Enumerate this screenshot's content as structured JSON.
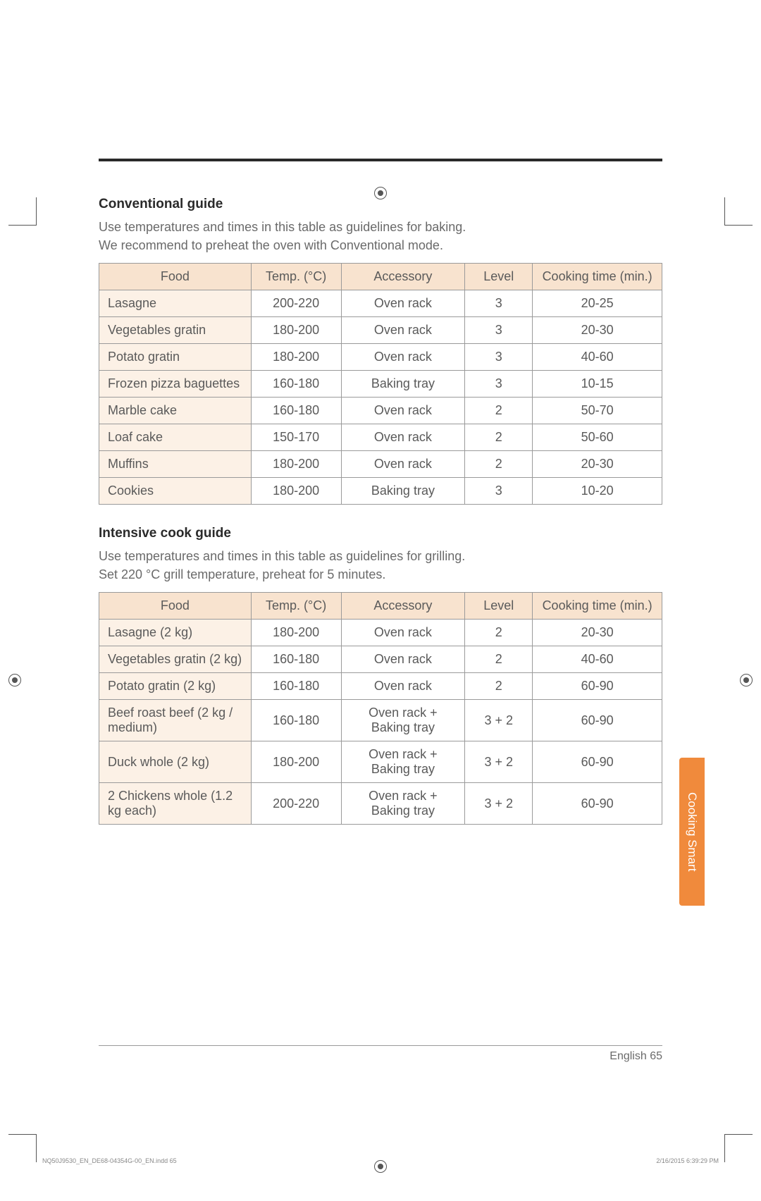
{
  "colors": {
    "rule": "#2a2a2a",
    "heading": "#2a2a2a",
    "body_text": "#6a6a6a",
    "table_border": "#9a9a9a",
    "th_bg": "#f8e3cf",
    "food_bg": "#fcf1e6",
    "tab_bg": "#f08a3c",
    "tab_text": "#ffffff"
  },
  "typography": {
    "heading_fontsize_pt": 14,
    "body_fontsize_pt": 13,
    "table_fontsize_pt": 13
  },
  "section1": {
    "heading": "Conventional guide",
    "desc_line1": "Use temperatures and times in this table as guidelines for baking.",
    "desc_line2": "We recommend to preheat the oven with Conventional mode.",
    "table": {
      "type": "table",
      "column_widths_pct": [
        27,
        16,
        22,
        12,
        23
      ],
      "columns": {
        "food": "Food",
        "temp": "Temp. (°C)",
        "accessory": "Accessory",
        "level": "Level",
        "time": "Cooking time (min.)"
      },
      "rows": [
        {
          "food": "Lasagne",
          "temp": "200-220",
          "accessory": "Oven rack",
          "level": "3",
          "time": "20-25"
        },
        {
          "food": "Vegetables gratin",
          "temp": "180-200",
          "accessory": "Oven rack",
          "level": "3",
          "time": "20-30"
        },
        {
          "food": "Potato gratin",
          "temp": "180-200",
          "accessory": "Oven rack",
          "level": "3",
          "time": "40-60"
        },
        {
          "food": "Frozen pizza baguettes",
          "temp": "160-180",
          "accessory": "Baking tray",
          "level": "3",
          "time": "10-15"
        },
        {
          "food": "Marble cake",
          "temp": "160-180",
          "accessory": "Oven rack",
          "level": "2",
          "time": "50-70"
        },
        {
          "food": "Loaf cake",
          "temp": "150-170",
          "accessory": "Oven rack",
          "level": "2",
          "time": "50-60"
        },
        {
          "food": "Muffins",
          "temp": "180-200",
          "accessory": "Oven rack",
          "level": "2",
          "time": "20-30"
        },
        {
          "food": "Cookies",
          "temp": "180-200",
          "accessory": "Baking tray",
          "level": "3",
          "time": "10-20"
        }
      ]
    }
  },
  "section2": {
    "heading": "Intensive cook guide",
    "desc_line1": "Use temperatures and times in this table as guidelines for grilling.",
    "desc_line2": "Set 220 °C grill temperature, preheat for 5 minutes.",
    "table": {
      "type": "table",
      "column_widths_pct": [
        27,
        16,
        22,
        12,
        23
      ],
      "columns": {
        "food": "Food",
        "temp": "Temp. (°C)",
        "accessory": "Accessory",
        "level": "Level",
        "time": "Cooking time (min.)"
      },
      "rows": [
        {
          "food": "Lasagne (2 kg)",
          "temp": "180-200",
          "accessory": "Oven rack",
          "level": "2",
          "time": "20-30"
        },
        {
          "food": "Vegetables gratin (2 kg)",
          "temp": "160-180",
          "accessory": "Oven rack",
          "level": "2",
          "time": "40-60"
        },
        {
          "food": "Potato gratin (2 kg)",
          "temp": "160-180",
          "accessory": "Oven rack",
          "level": "2",
          "time": "60-90"
        },
        {
          "food": "Beef roast beef (2 kg / medium)",
          "temp": "160-180",
          "accessory": "Oven rack + Baking tray",
          "level": "3 + 2",
          "time": "60-90"
        },
        {
          "food": "Duck whole (2 kg)",
          "temp": "180-200",
          "accessory": "Oven rack + Baking tray",
          "level": "3 + 2",
          "time": "60-90"
        },
        {
          "food": "2 Chickens whole (1.2 kg each)",
          "temp": "200-220",
          "accessory": "Oven rack + Baking tray",
          "level": "3 + 2",
          "time": "60-90"
        }
      ]
    }
  },
  "side_tab": "Cooking Smart",
  "footer": {
    "lang_page": "English  65",
    "indd": "NQ50J9530_EN_DE68-04354G-00_EN.indd   65",
    "timestamp": "2/16/2015   6:39:29 PM"
  }
}
